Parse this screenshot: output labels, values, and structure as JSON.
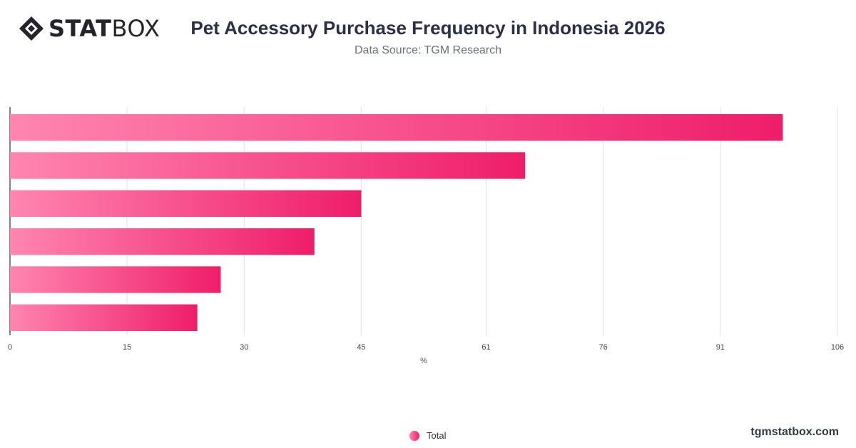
{
  "brand": {
    "logo_bold": "STAT",
    "logo_light": "BOX",
    "site": "tgmstatbox.com"
  },
  "header": {
    "title": "Pet Accessory Purchase Frequency in Indonesia 2026",
    "subtitle": "Data Source: TGM Research"
  },
  "colors": {
    "bar_start": "#ff85b0",
    "bar_end": "#ef1d6a",
    "grid": "#e3e3e3",
    "axis": "#333333"
  },
  "chart_data": {
    "type": "bar",
    "orientation": "horizontal",
    "categories": [
      "",
      "",
      "",
      "",
      "",
      ""
    ],
    "series": [
      {
        "name": "Total",
        "values": [
          99,
          66,
          45,
          39,
          27,
          24
        ]
      }
    ],
    "xlabel": "%",
    "ylabel": "",
    "xlim": [
      0,
      106
    ],
    "xticks": [
      0,
      15,
      30,
      45,
      61,
      76,
      91,
      106
    ],
    "grid": true,
    "legend": "bottom-center"
  }
}
